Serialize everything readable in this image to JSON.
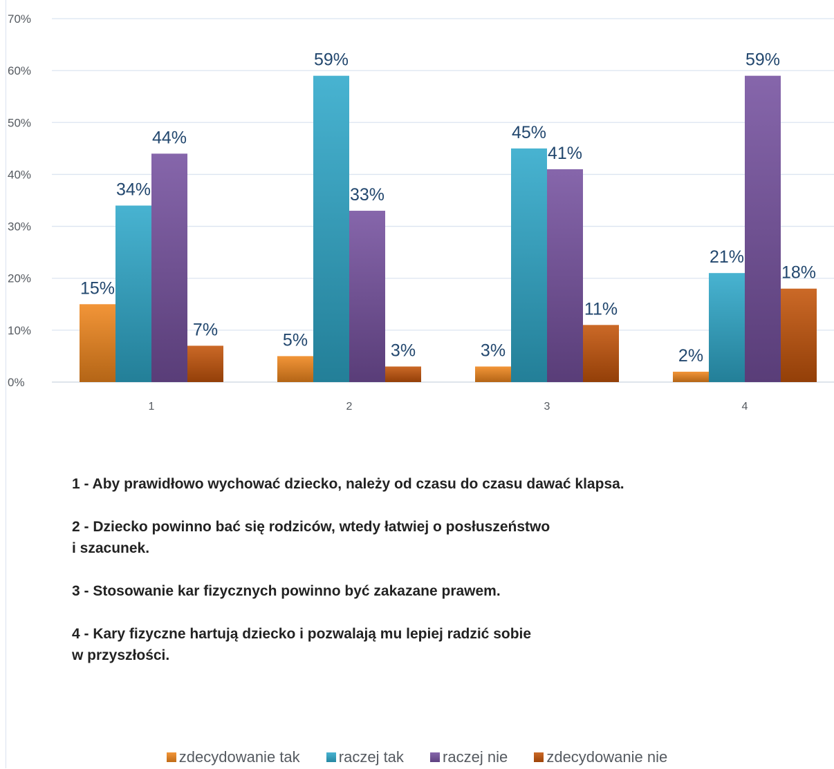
{
  "chart_data": {
    "type": "bar",
    "categories": [
      "1",
      "2",
      "3",
      "4"
    ],
    "series": [
      {
        "name": "zdecydowanie tak",
        "values": [
          15,
          5,
          3,
          2
        ],
        "labels": [
          "15%",
          "5%",
          "3%",
          "2%"
        ],
        "color": "#f0861d"
      },
      {
        "name": "raczej tak",
        "values": [
          34,
          59,
          45,
          21
        ],
        "labels": [
          "34%",
          "59%",
          "45%",
          "21%"
        ],
        "color": "#2fa9cb"
      },
      {
        "name": "raczej nie",
        "values": [
          44,
          33,
          41,
          59
        ],
        "labels": [
          "44%",
          "33%",
          "41%",
          "59%"
        ],
        "color": "#7651a0"
      },
      {
        "name": "zdecydowanie nie",
        "values": [
          7,
          3,
          11,
          18
        ],
        "labels": [
          "7%",
          "3%",
          "11%",
          "18%"
        ],
        "color": "#c4540a"
      }
    ],
    "ylim": [
      0,
      70
    ],
    "yticks": [
      "0%",
      "10%",
      "20%",
      "30%",
      "40%",
      "50%",
      "60%",
      "70%"
    ],
    "grid": true,
    "legend": "bottom"
  },
  "notes": [
    "1 - Aby prawidłowo wychować dziecko, należy od czasu do czasu dawać klapsa.",
    "2 - Dziecko powinno bać się rodziców, wtedy łatwiej o posłuszeństwo\ni szacunek.",
    "3 - Stosowanie kar fizycznych powinno być zakazane prawem.",
    "4 - Kary fizyczne hartują dziecko i pozwalają mu lepiej radzić sobie\nw przyszłości."
  ]
}
